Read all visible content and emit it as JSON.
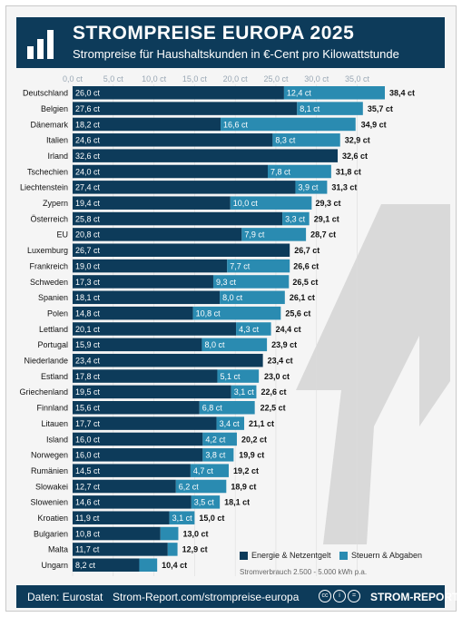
{
  "header": {
    "title": "STROMPREISE EUROPA 2025",
    "subtitle": "Strompreise für Haushaltskunden in €-Cent pro Kilowattstunde",
    "logo_icon": "bar-chart-logo-icon"
  },
  "colors": {
    "header_bg": "#0d3b5a",
    "energy": "#0d3b5a",
    "taxes": "#2a8bb1",
    "bolt": "#d9d9d9"
  },
  "legend": {
    "energy": "Energie & Netzentgelt",
    "taxes": "Steuern & Abgaben"
  },
  "note": "Stromverbrauch 2.500 - 5.000 kWh p.a.",
  "footer": {
    "source": "Daten: Eurostat",
    "url": "Strom-Report.com/strompreise-europa",
    "license_icons": [
      "cc",
      "i",
      "="
    ],
    "brand": "STROM-REPORT"
  },
  "chart_data": {
    "type": "bar",
    "orientation": "horizontal",
    "stacked": true,
    "xlim": [
      0,
      38.4
    ],
    "x_ticks": [
      "0,0 ct",
      "5,0 ct",
      "10,0 ct",
      "15,0 ct",
      "20,0 ct",
      "25,0 ct",
      "30,0 ct",
      "35,0 ct"
    ],
    "x_tick_values": [
      0,
      5,
      10,
      15,
      20,
      25,
      30,
      35
    ],
    "categories": [
      "Deutschland",
      "Belgien",
      "Dänemark",
      "Italien",
      "Irland",
      "Tschechien",
      "Liechtenstein",
      "Zypern",
      "Österreich",
      "EU",
      "Luxemburg",
      "Frankreich",
      "Schweden",
      "Spanien",
      "Polen",
      "Lettland",
      "Portugal",
      "Niederlande",
      "Estland",
      "Griechenland",
      "Finnland",
      "Litauen",
      "Island",
      "Norwegen",
      "Rumänien",
      "Slowakei",
      "Slowenien",
      "Kroatien",
      "Bulgarien",
      "Malta",
      "Ungarn"
    ],
    "series": [
      {
        "name": "Energie & Netzentgelt",
        "values": [
          26.0,
          27.6,
          18.2,
          24.6,
          32.6,
          24.0,
          27.4,
          19.4,
          25.8,
          20.8,
          26.7,
          19.0,
          17.3,
          18.1,
          14.8,
          20.1,
          15.9,
          23.4,
          17.8,
          19.5,
          15.6,
          17.7,
          16.0,
          16.0,
          14.5,
          12.7,
          14.6,
          11.9,
          10.8,
          11.7,
          8.2
        ],
        "labels": [
          "26,0 ct",
          "27,6 ct",
          "18,2 ct",
          "24,6 ct",
          "32,6 ct",
          "24,0 ct",
          "27,4 ct",
          "19,4 ct",
          "25,8 ct",
          "20,8 ct",
          "26,7 ct",
          "19,0 ct",
          "17,3 ct",
          "18,1 ct",
          "14,8 ct",
          "20,1 ct",
          "15,9 ct",
          "23,4 ct",
          "17,8 ct",
          "19,5 ct",
          "15,6 ct",
          "17,7 ct",
          "16,0 ct",
          "16,0 ct",
          "14,5 ct",
          "12,7 ct",
          "14,6 ct",
          "11,9 ct",
          "10,8 ct",
          "11,7 ct",
          "8,2 ct"
        ]
      },
      {
        "name": "Steuern & Abgaben",
        "values": [
          12.4,
          8.1,
          16.6,
          8.3,
          0,
          7.8,
          3.9,
          10.0,
          3.3,
          7.9,
          0,
          7.7,
          9.3,
          8.0,
          10.8,
          4.3,
          8.0,
          0,
          5.1,
          3.1,
          6.8,
          3.4,
          4.2,
          3.8,
          4.7,
          6.2,
          3.5,
          3.1,
          2.2,
          1.2,
          2.2
        ],
        "labels": [
          "12,4 ct",
          "8,1 ct",
          "16,6 ct",
          "8,3 ct",
          "",
          "7,8 ct",
          "3,9 ct",
          "10,0 ct",
          "3,3 ct",
          "7,9 ct",
          "",
          "7,7 ct",
          "9,3 ct",
          "8,0 ct",
          "10,8 ct",
          "4,3 ct",
          "8,0 ct",
          "",
          "5,1 ct",
          "3,1 ct",
          "6,8 ct",
          "3,4 ct",
          "4,2 ct",
          "3,8 ct",
          "4,7 ct",
          "6,2 ct",
          "3,5 ct",
          "3,1 ct",
          "",
          "",
          ""
        ]
      }
    ],
    "totals": [
      38.4,
      35.7,
      34.9,
      32.9,
      32.6,
      31.8,
      31.3,
      29.3,
      29.1,
      28.7,
      26.7,
      26.6,
      26.5,
      26.1,
      25.6,
      24.4,
      23.9,
      23.4,
      23.0,
      22.6,
      22.5,
      21.1,
      20.2,
      19.9,
      19.2,
      18.9,
      18.1,
      15.0,
      13.0,
      12.9,
      10.4
    ],
    "total_labels": [
      "38,4 ct",
      "35,7 ct",
      "34,9 ct",
      "32,9 ct",
      "32,6 ct",
      "31,8 ct",
      "31,3 ct",
      "29,3 ct",
      "29,1 ct",
      "28,7 ct",
      "26,7 ct",
      "26,6 ct",
      "26,5 ct",
      "26,1 ct",
      "25,6 ct",
      "24,4 ct",
      "23,9 ct",
      "23,4 ct",
      "23,0 ct",
      "22,6 ct",
      "22,5 ct",
      "21,1 ct",
      "20,2 ct",
      "19,9 ct",
      "19,2 ct",
      "18,9 ct",
      "18,1 ct",
      "15,0 ct",
      "13,0 ct",
      "12,9 ct",
      "10,4 ct"
    ]
  }
}
